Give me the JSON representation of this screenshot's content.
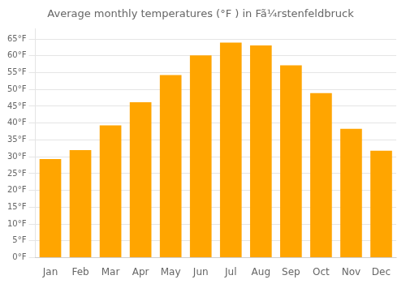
{
  "chart_data": {
    "type": "bar",
    "title": "Average monthly temperatures (°F ) in Fã¼rstenfeldbruck",
    "categories": [
      "Jan",
      "Feb",
      "Mar",
      "Apr",
      "May",
      "Jun",
      "Jul",
      "Aug",
      "Sep",
      "Oct",
      "Nov",
      "Dec"
    ],
    "values": [
      29.3,
      32.0,
      39.3,
      46.2,
      54.3,
      60.1,
      63.9,
      63.1,
      57.2,
      48.9,
      38.3,
      31.8
    ],
    "color": "#FFA500",
    "ylim": [
      0,
      68
    ],
    "yticks": [
      {
        "value": 0,
        "label": "0°F"
      },
      {
        "value": 5,
        "label": "5°F"
      },
      {
        "value": 10,
        "label": "10°F"
      },
      {
        "value": 15,
        "label": "15°F"
      },
      {
        "value": 20,
        "label": "20°F"
      },
      {
        "value": 25,
        "label": "25°F"
      },
      {
        "value": 30,
        "label": "30°F"
      },
      {
        "value": 35,
        "label": "35°F"
      },
      {
        "value": 40,
        "label": "40°F"
      },
      {
        "value": 45,
        "label": "45°F"
      },
      {
        "value": 50,
        "label": "50°F"
      },
      {
        "value": 55,
        "label": "55°F"
      },
      {
        "value": 60,
        "label": "60°F"
      },
      {
        "value": 65,
        "label": "65°F"
      }
    ],
    "grid": "y"
  }
}
